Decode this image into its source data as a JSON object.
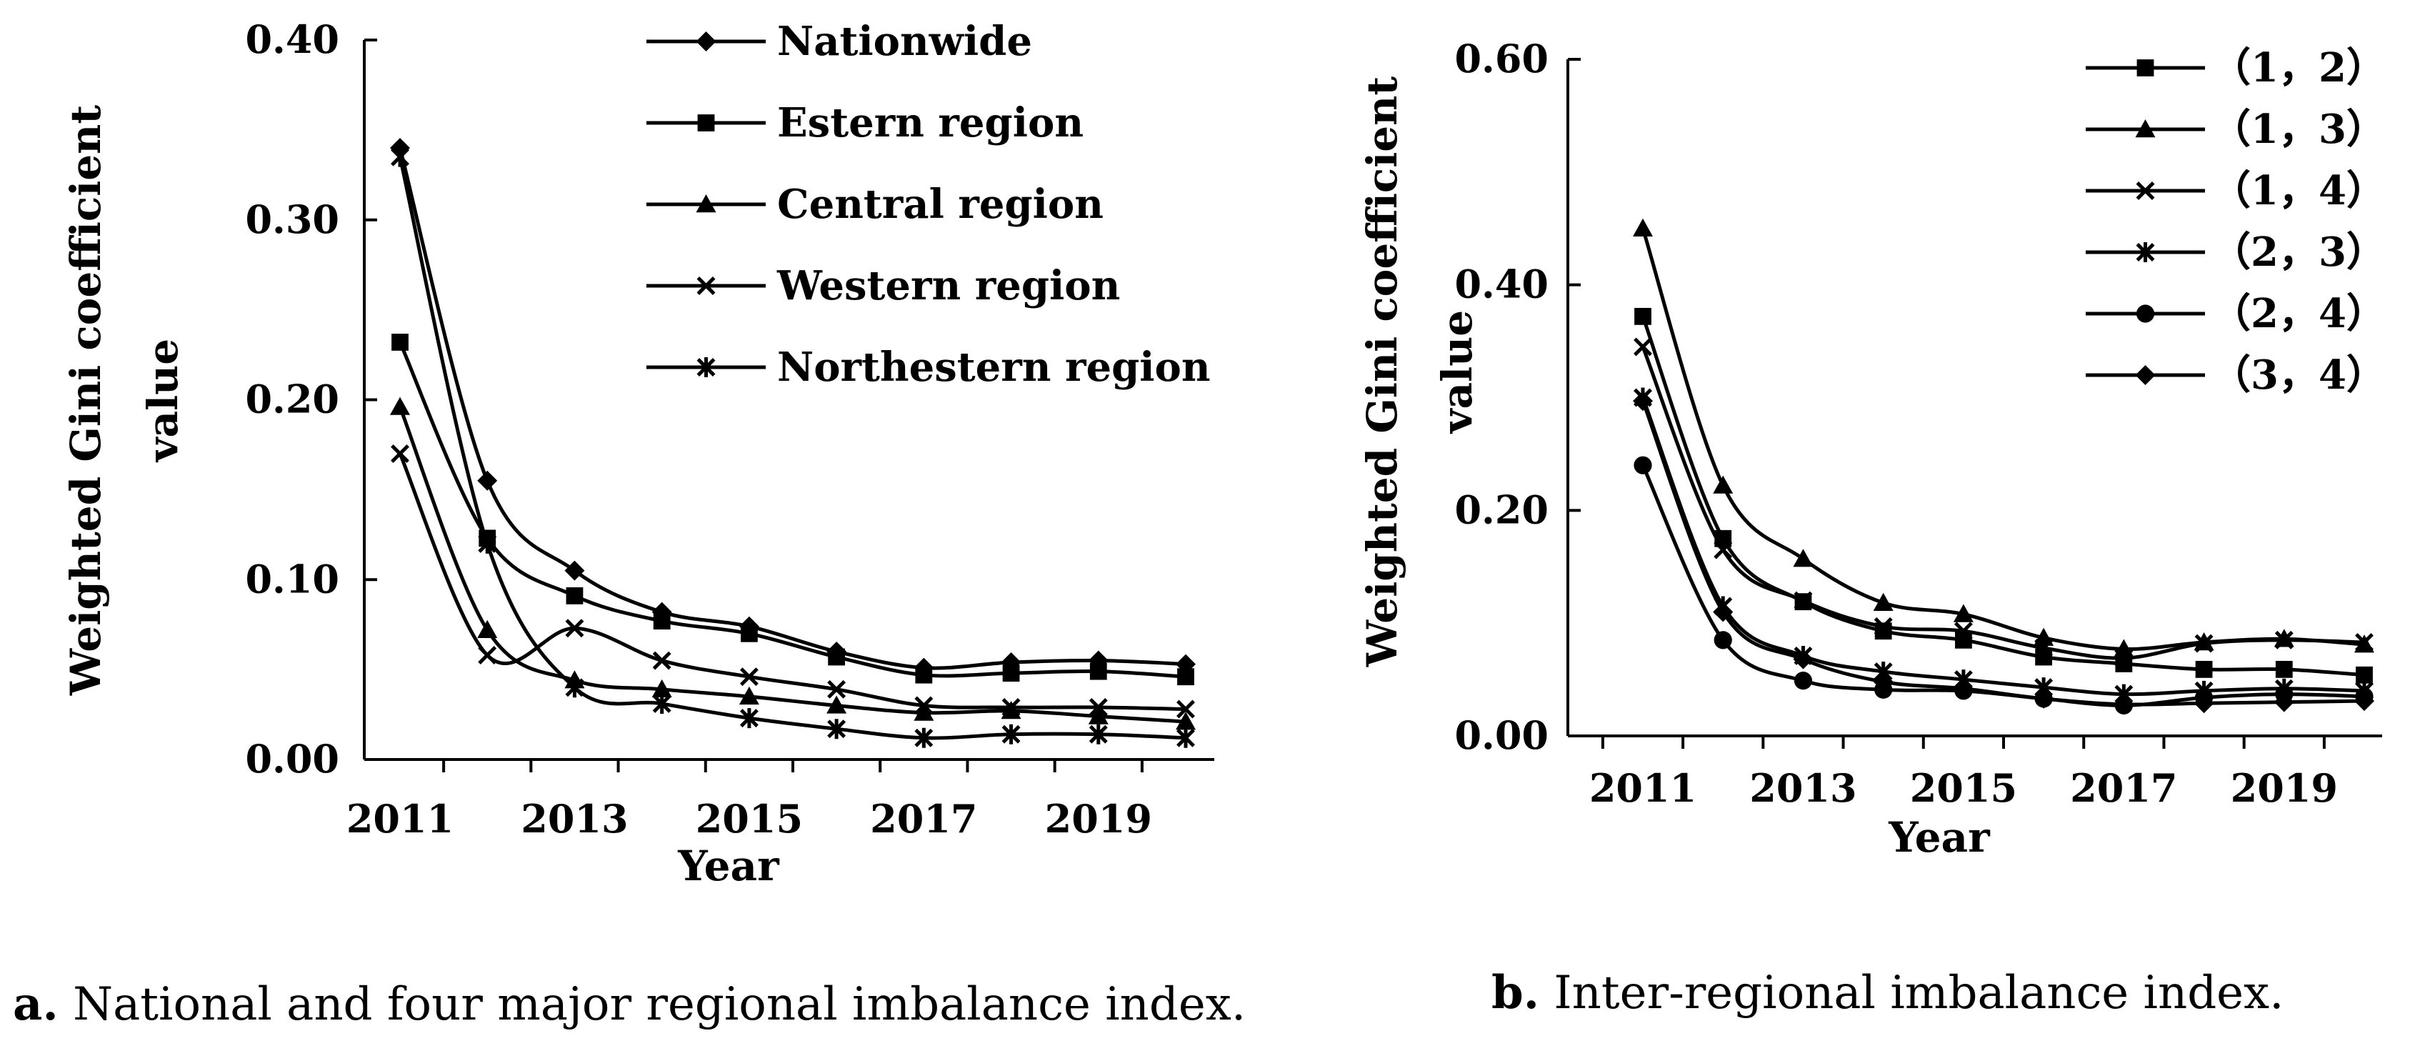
{
  "chart_data": [
    {
      "type": "line",
      "title": "",
      "xlabel": "Year",
      "ylabel": "Weighted Gini coefficient value",
      "ylim": [
        0,
        0.4
      ],
      "yticks": [
        "0.00",
        "0.10",
        "0.20",
        "0.30",
        "0.40"
      ],
      "xticks": [
        "2011",
        "2013",
        "2015",
        "2017",
        "2019"
      ],
      "x": [
        2011,
        2012,
        2013,
        2014,
        2015,
        2016,
        2017,
        2018,
        2019,
        2020
      ],
      "legend_position": "top-right",
      "series": [
        {
          "name": "Nationwide",
          "marker": "diamond",
          "values": [
            0.34,
            0.155,
            0.105,
            0.082,
            0.074,
            0.06,
            0.051,
            0.054,
            0.055,
            0.053
          ]
        },
        {
          "name": "Estern region",
          "marker": "square",
          "values": [
            0.232,
            0.123,
            0.091,
            0.077,
            0.07,
            0.057,
            0.047,
            0.048,
            0.049,
            0.046
          ]
        },
        {
          "name": "Central region",
          "marker": "triangle",
          "values": [
            0.196,
            0.072,
            0.044,
            0.039,
            0.035,
            0.03,
            0.026,
            0.027,
            0.024,
            0.021
          ]
        },
        {
          "name": "Western region",
          "marker": "x",
          "values": [
            0.17,
            0.058,
            0.073,
            0.055,
            0.046,
            0.039,
            0.03,
            0.029,
            0.029,
            0.028
          ]
        },
        {
          "name": "Northestern region",
          "marker": "star",
          "values": [
            0.335,
            0.12,
            0.04,
            0.031,
            0.023,
            0.017,
            0.012,
            0.014,
            0.014,
            0.012
          ]
        }
      ],
      "caption_bold": "a.",
      "caption": " National and four major regional imbalance index."
    },
    {
      "type": "line",
      "title": "",
      "xlabel": "Year",
      "ylabel": "Weighted Gini coefficient value",
      "ylim": [
        0,
        0.6
      ],
      "yticks": [
        "0.00",
        "0.20",
        "0.40",
        "0.60"
      ],
      "xticks": [
        "2011",
        "2013",
        "2015",
        "2017",
        "2019"
      ],
      "x": [
        2011,
        2012,
        2013,
        2014,
        2015,
        2016,
        2017,
        2018,
        2019,
        2020
      ],
      "legend_position": "top-right",
      "series": [
        {
          "name": "（1，2）",
          "marker": "square",
          "values": [
            0.372,
            0.175,
            0.119,
            0.093,
            0.085,
            0.07,
            0.064,
            0.059,
            0.059,
            0.054
          ]
        },
        {
          "name": "（1，3）",
          "marker": "triangle",
          "values": [
            0.45,
            0.222,
            0.157,
            0.118,
            0.108,
            0.087,
            0.077,
            0.083,
            0.086,
            0.081
          ]
        },
        {
          "name": "（1，4）",
          "marker": "x",
          "values": [
            0.345,
            0.165,
            0.12,
            0.097,
            0.093,
            0.078,
            0.069,
            0.082,
            0.085,
            0.083
          ]
        },
        {
          "name": "（2，3）",
          "marker": "star",
          "values": [
            0.3,
            0.115,
            0.071,
            0.057,
            0.05,
            0.043,
            0.037,
            0.04,
            0.042,
            0.04
          ]
        },
        {
          "name": "（2，4）",
          "marker": "circle",
          "values": [
            0.24,
            0.085,
            0.049,
            0.041,
            0.04,
            0.033,
            0.027,
            0.034,
            0.037,
            0.035
          ]
        },
        {
          "name": "（3，4）",
          "marker": "diamond",
          "values": [
            0.297,
            0.11,
            0.068,
            0.048,
            0.042,
            0.033,
            0.028,
            0.029,
            0.03,
            0.031
          ]
        }
      ],
      "caption_bold": "b.",
      "caption": " Inter-regional imbalance index."
    }
  ]
}
